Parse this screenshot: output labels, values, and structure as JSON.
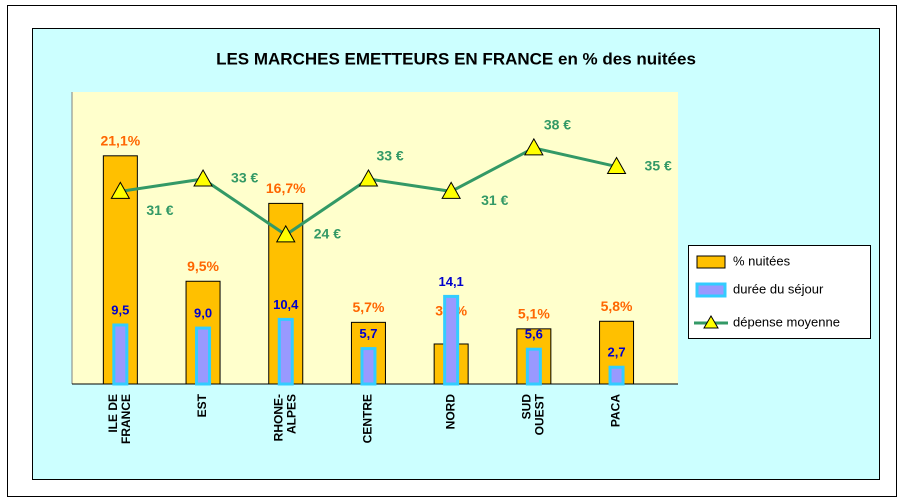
{
  "chart_data": {
    "type": "combo",
    "title": "LES MARCHES EMETTEURS EN FRANCE en % des nuitées",
    "categories": [
      [
        "ILE DE",
        "FRANCE"
      ],
      [
        "EST"
      ],
      [
        "RHONE-",
        "ALPES"
      ],
      [
        "CENTRE"
      ],
      [
        "NORD"
      ],
      [
        "SUD",
        "OUEST"
      ],
      [
        "PACA"
      ]
    ],
    "ylim": [
      0,
      27
    ],
    "y2lim": [
      0,
      47
    ],
    "legend": "right",
    "series": [
      {
        "name": "% nuitées",
        "type": "bar",
        "color": "#ffc000",
        "label_color": "#ff6600",
        "values": [
          21.1,
          9.5,
          16.7,
          5.7,
          3.7,
          5.1,
          5.8
        ],
        "value_labels": [
          "21,1%",
          "9,5%",
          "16,7%",
          "5,7%",
          "3,7%",
          "5,1%",
          "5,8%"
        ]
      },
      {
        "name": "durée du séjour",
        "type": "bar",
        "axis": "y2",
        "color": "#9999ff",
        "border_color": "#33ccff",
        "label_color": "#0000cc",
        "values": [
          9.5,
          9.0,
          10.4,
          5.7,
          14.1,
          5.6,
          2.7
        ],
        "value_labels": [
          "9,5",
          "9,0",
          "10,4",
          "5,7",
          "14,1",
          "5,6",
          "2,7"
        ]
      },
      {
        "name": "dépense moyenne",
        "type": "line",
        "axis": "y2",
        "color": "#339966",
        "marker_color": "#ffff00",
        "label_color": "#339966",
        "values": [
          31,
          33,
          24,
          33,
          31,
          38,
          35
        ],
        "value_labels": [
          "31 €",
          "33 €",
          "24 €",
          "33 €",
          "31 €",
          "38 €",
          "35 €"
        ]
      }
    ]
  }
}
